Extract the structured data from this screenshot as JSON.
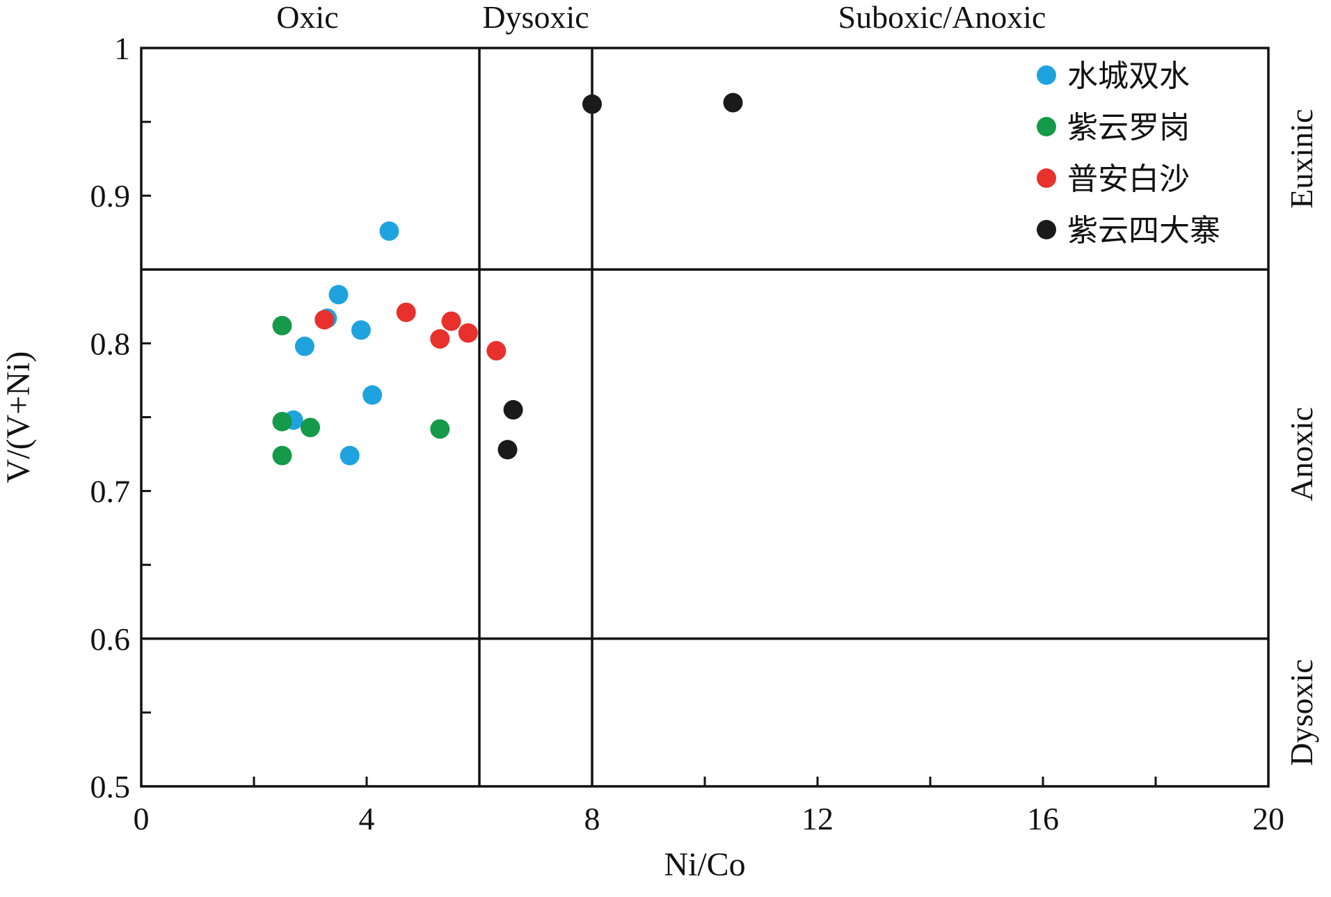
{
  "chart_data": {
    "type": "scatter",
    "xlabel": "Ni/Co",
    "ylabel": "V/(V+Ni)",
    "xlim": [
      0,
      20
    ],
    "ylim": [
      0.5,
      1
    ],
    "x_ticks": [
      "0",
      "4",
      "8",
      "12",
      "16",
      "20"
    ],
    "x_tick_values": [
      0,
      4,
      8,
      12,
      16,
      20
    ],
    "x_minor_tick_values": [
      2,
      6,
      10,
      14,
      18
    ],
    "y_ticks": [
      "0.5",
      "0.6",
      "0.7",
      "0.8",
      "0.9",
      "1"
    ],
    "y_tick_values": [
      0.5,
      0.6,
      0.7,
      0.8,
      0.9,
      1.0
    ],
    "y_minor_tick_values": [
      0.55,
      0.65,
      0.75,
      0.85,
      0.95
    ],
    "grid": false,
    "legend_position": "top-right",
    "boundaries": {
      "x": [
        6,
        8
      ],
      "y": [
        0.6,
        0.85
      ]
    },
    "top_zones": [
      {
        "label": "Oxic",
        "x": 3
      },
      {
        "label": "Dysoxic",
        "x": 7
      },
      {
        "label": "Suboxic/Anoxic",
        "x": 14
      }
    ],
    "right_zones": [
      {
        "label": "Euxinic",
        "y": 0.925
      },
      {
        "label": "Anoxic",
        "y": 0.725
      },
      {
        "label": "Dysoxic",
        "y": 0.55
      }
    ],
    "series": [
      {
        "name": "水城双水",
        "color": "#1fa3de",
        "points": [
          [
            3.3,
            0.817
          ],
          [
            3.5,
            0.833
          ],
          [
            2.9,
            0.798
          ],
          [
            3.9,
            0.809
          ],
          [
            4.4,
            0.876
          ],
          [
            4.1,
            0.765
          ],
          [
            2.7,
            0.748
          ],
          [
            3.7,
            0.724
          ]
        ]
      },
      {
        "name": "紫云罗岗",
        "color": "#149a49",
        "points": [
          [
            2.5,
            0.812
          ],
          [
            2.5,
            0.747
          ],
          [
            3.0,
            0.743
          ],
          [
            2.5,
            0.724
          ],
          [
            5.3,
            0.742
          ]
        ]
      },
      {
        "name": "普安白沙",
        "color": "#e8312c",
        "points": [
          [
            3.25,
            0.816
          ],
          [
            4.7,
            0.821
          ],
          [
            5.5,
            0.815
          ],
          [
            5.3,
            0.803
          ],
          [
            5.8,
            0.807
          ],
          [
            6.3,
            0.795
          ]
        ]
      },
      {
        "name": "紫云四大寨",
        "color": "#1a1a1a",
        "points": [
          [
            8.0,
            0.962
          ],
          [
            10.5,
            0.963
          ],
          [
            6.6,
            0.755
          ],
          [
            6.5,
            0.728
          ]
        ]
      }
    ]
  }
}
